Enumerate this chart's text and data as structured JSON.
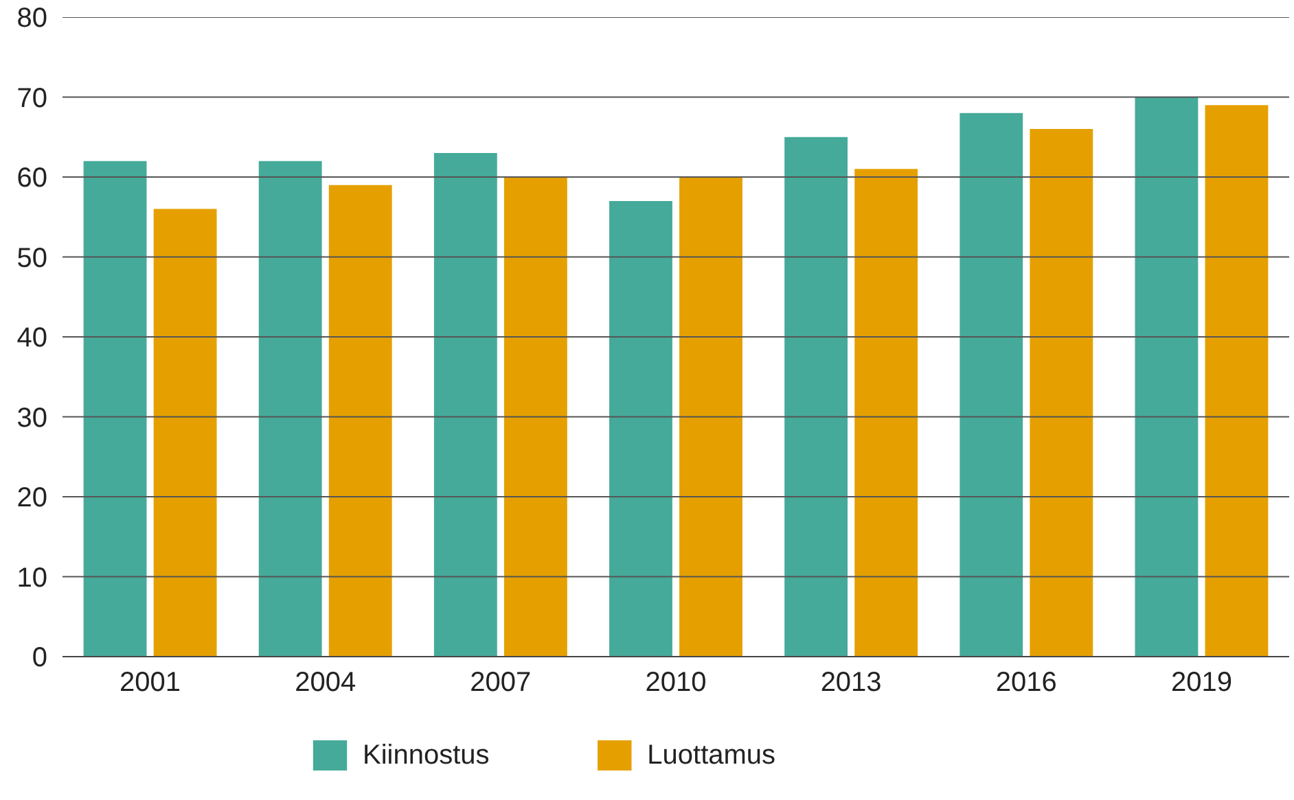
{
  "chart_data": {
    "type": "bar",
    "categories": [
      "2001",
      "2004",
      "2007",
      "2010",
      "2013",
      "2016",
      "2019"
    ],
    "series": [
      {
        "name": "Kiinnostus",
        "color": "#45aa9a",
        "values": [
          62,
          62,
          63,
          57,
          65,
          68,
          70
        ]
      },
      {
        "name": "Luottamus",
        "color": "#e5a000",
        "values": [
          56,
          59,
          60,
          60,
          61,
          66,
          69
        ]
      }
    ],
    "ylim": [
      0,
      80
    ],
    "yticks": [
      0,
      10,
      20,
      30,
      40,
      50,
      60,
      70,
      80
    ],
    "grid": "y",
    "legend": "bottom"
  }
}
